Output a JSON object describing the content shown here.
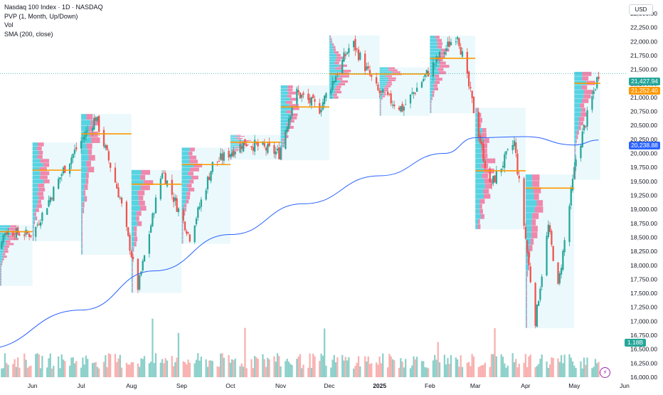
{
  "legend": {
    "symbol": "Nasdaq 100 Index · 1D · NASDAQ",
    "indicator_pvp": "PVP (1, Month, Up/Down)",
    "indicator_vol": "Vol",
    "indicator_sma": "SMA (200, close)"
  },
  "currency_label": "USD",
  "tags": {
    "last_price": "21,427.94",
    "poc_price": "21,252.40",
    "sma_value": "20,238.88",
    "volume_value": "1.18B"
  },
  "colors": {
    "up": "#26a69a",
    "down": "#ef5350",
    "sma": "#2962ff",
    "poc": "#ff9800",
    "profile_up": "#26c6da",
    "profile_down": "#f06292",
    "range_fill": "#e3f6fb"
  },
  "chart_data": {
    "type": "candlestick",
    "title": "Nasdaq 100 Index · 1D · NASDAQ",
    "y_ticks": [
      16000,
      16250,
      16500,
      16750,
      17000,
      17250,
      17500,
      17750,
      18000,
      18250,
      18500,
      18750,
      19000,
      19250,
      19500,
      19750,
      20000,
      20250,
      20500,
      20750,
      21000,
      21250,
      21500,
      21750,
      22000,
      22250,
      22500
    ],
    "y_tick_labels": [
      "16,000.00",
      "16,250.00",
      "16,500.00",
      "16,750.00",
      "17,000.00",
      "17,250.00",
      "17,500.00",
      "17,750.00",
      "18,000.00",
      "18,250.00",
      "18,500.00",
      "18,750.00",
      "19,000.00",
      "19,250.00",
      "19,500.00",
      "19,750.00",
      "20,000.00",
      "20,250.00",
      "20,500.00",
      "20,750.00",
      "21,000.00",
      "21,250.00",
      "21,500.00",
      "21,750.00",
      "22,000.00",
      "22,250.00",
      "22,500.00"
    ],
    "ylim": [
      16000,
      22500
    ],
    "x_tick_labels": [
      "Jun",
      "Jul",
      "Aug",
      "Sep",
      "Oct",
      "Nov",
      "Dec",
      "2025",
      "Feb",
      "Mar",
      "Apr",
      "May",
      "Jun"
    ],
    "last_price": 21427.94,
    "sma_200_last": 20238.88,
    "volume_last": "1.18B",
    "monthly_poc": [
      {
        "month": "May",
        "price": 18600
      },
      {
        "month": "Jun",
        "price": 19700
      },
      {
        "month": "Jul",
        "price": 20350
      },
      {
        "month": "Aug",
        "price": 19450
      },
      {
        "month": "Sep",
        "price": 19800
      },
      {
        "month": "Oct",
        "price": 20200
      },
      {
        "month": "Nov",
        "price": 20830
      },
      {
        "month": "Dec",
        "price": 21420
      },
      {
        "month": "Jan",
        "price": 21420
      },
      {
        "month": "Feb",
        "price": 21700
      },
      {
        "month": "Mar",
        "price": 19690
      },
      {
        "month": "Apr",
        "price": 19380
      },
      {
        "month": "May",
        "price": 21252.4
      }
    ],
    "sma_anchor_points": [
      {
        "date": "2024-05-01",
        "value": 16500
      },
      {
        "date": "2024-07-01",
        "value": 17200
      },
      {
        "date": "2024-08-15",
        "value": 17900
      },
      {
        "date": "2024-10-01",
        "value": 18550
      },
      {
        "date": "2024-11-15",
        "value": 19100
      },
      {
        "date": "2025-01-01",
        "value": 19600
      },
      {
        "date": "2025-02-10",
        "value": 20000
      },
      {
        "date": "2025-03-01",
        "value": 20280
      },
      {
        "date": "2025-04-01",
        "value": 20300
      },
      {
        "date": "2025-05-01",
        "value": 20150
      },
      {
        "date": "2025-05-16",
        "value": 20238.88
      }
    ],
    "close_anchor_points": [
      {
        "date": "2024-05-01",
        "close": 17700
      },
      {
        "date": "2024-05-15",
        "close": 18600
      },
      {
        "date": "2024-06-01",
        "close": 18550
      },
      {
        "date": "2024-06-20",
        "close": 19700
      },
      {
        "date": "2024-07-10",
        "close": 20650
      },
      {
        "date": "2024-07-25",
        "close": 19200
      },
      {
        "date": "2024-08-05",
        "close": 17600
      },
      {
        "date": "2024-08-20",
        "close": 19700
      },
      {
        "date": "2024-09-06",
        "close": 18500
      },
      {
        "date": "2024-09-20",
        "close": 19800
      },
      {
        "date": "2024-10-10",
        "close": 20200
      },
      {
        "date": "2024-10-31",
        "close": 20000
      },
      {
        "date": "2024-11-10",
        "close": 21100
      },
      {
        "date": "2024-11-25",
        "close": 20800
      },
      {
        "date": "2024-12-15",
        "close": 22000
      },
      {
        "date": "2024-12-31",
        "close": 21100
      },
      {
        "date": "2025-01-15",
        "close": 20800
      },
      {
        "date": "2025-02-01",
        "close": 21500
      },
      {
        "date": "2025-02-18",
        "close": 22150
      },
      {
        "date": "2025-03-10",
        "close": 19400
      },
      {
        "date": "2025-03-25",
        "close": 20200
      },
      {
        "date": "2025-04-07",
        "close": 17000
      },
      {
        "date": "2025-04-15",
        "close": 18700
      },
      {
        "date": "2025-04-21",
        "close": 17600
      },
      {
        "date": "2025-05-02",
        "close": 19900
      },
      {
        "date": "2025-05-16",
        "close": 21427.94
      }
    ]
  }
}
